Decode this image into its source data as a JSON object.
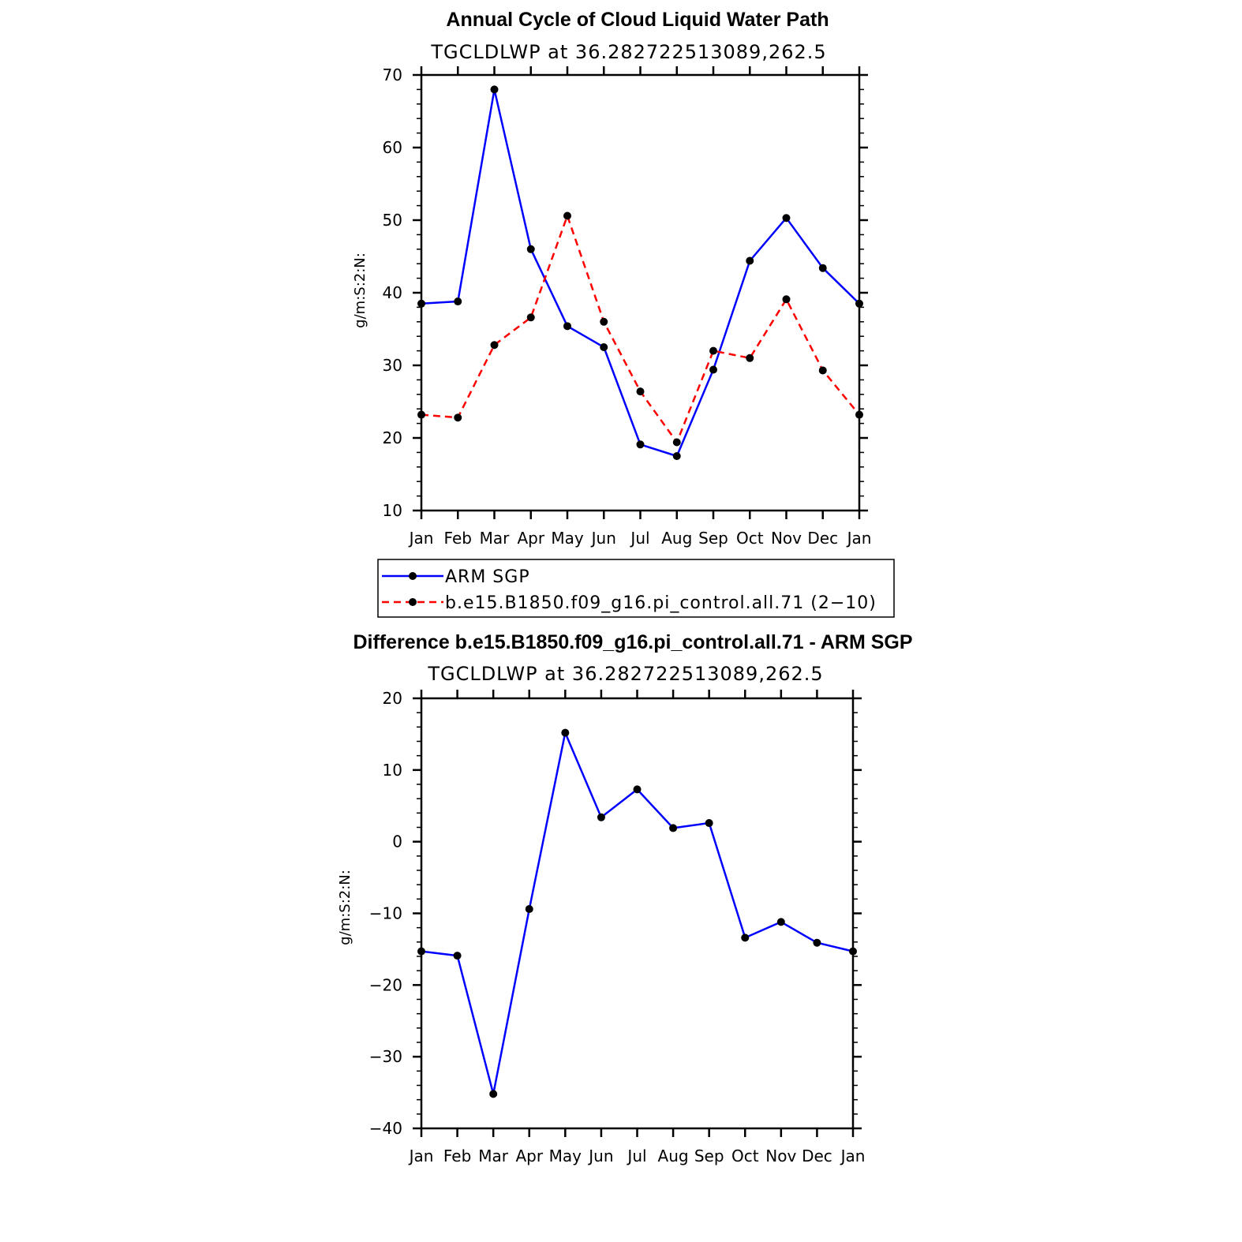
{
  "chart_data": [
    {
      "type": "line",
      "title": "Annual Cycle of Cloud Liquid Water Path",
      "subtitle": "TGCLDLWP at 36.282722513089,262.5",
      "ylabel": "g/m:S:2:N:",
      "xlabel": "",
      "categories": [
        "Jan",
        "Feb",
        "Mar",
        "Apr",
        "May",
        "Jun",
        "Jul",
        "Aug",
        "Sep",
        "Oct",
        "Nov",
        "Dec",
        "Jan"
      ],
      "ylim": [
        10,
        70
      ],
      "yticks": [
        "10",
        "20",
        "30",
        "40",
        "50",
        "60",
        "70"
      ],
      "series": [
        {
          "name": "ARM SGP",
          "color": "#0000ff",
          "dashed": false,
          "values": [
            38.5,
            38.8,
            68.0,
            46.0,
            35.4,
            32.5,
            19.1,
            17.5,
            29.4,
            44.4,
            50.3,
            43.4,
            38.5
          ]
        },
        {
          "name": "b.e15.B1850.f09_g16.pi_control.all.71 (2−10)",
          "color": "#ff0000",
          "dashed": true,
          "values": [
            23.2,
            22.8,
            32.8,
            36.6,
            50.6,
            36.0,
            26.4,
            19.4,
            32.0,
            31.0,
            39.1,
            29.3,
            23.2
          ]
        }
      ],
      "legend": "bottom"
    },
    {
      "type": "line",
      "title": "Difference b.e15.B1850.f09_g16.pi_control.all.71 - ARM SGP",
      "subtitle": "TGCLDLWP at 36.282722513089,262.5",
      "ylabel": "g/m:S:2:N:",
      "xlabel": "",
      "categories": [
        "Jan",
        "Feb",
        "Mar",
        "Apr",
        "May",
        "Jun",
        "Jul",
        "Aug",
        "Sep",
        "Oct",
        "Nov",
        "Dec",
        "Jan"
      ],
      "ylim": [
        -40,
        20
      ],
      "yticks": [
        "−40",
        "−30",
        "−20",
        "−10",
        "0",
        "10",
        "20"
      ],
      "series": [
        {
          "name": "Difference",
          "color": "#0000ff",
          "dashed": false,
          "values": [
            -15.3,
            -15.9,
            -35.2,
            -9.4,
            15.2,
            3.4,
            7.3,
            1.9,
            2.6,
            -13.4,
            -11.2,
            -14.1,
            -15.3
          ]
        }
      ]
    }
  ],
  "colors": {
    "axis": "#000000",
    "marker": "#000000"
  }
}
